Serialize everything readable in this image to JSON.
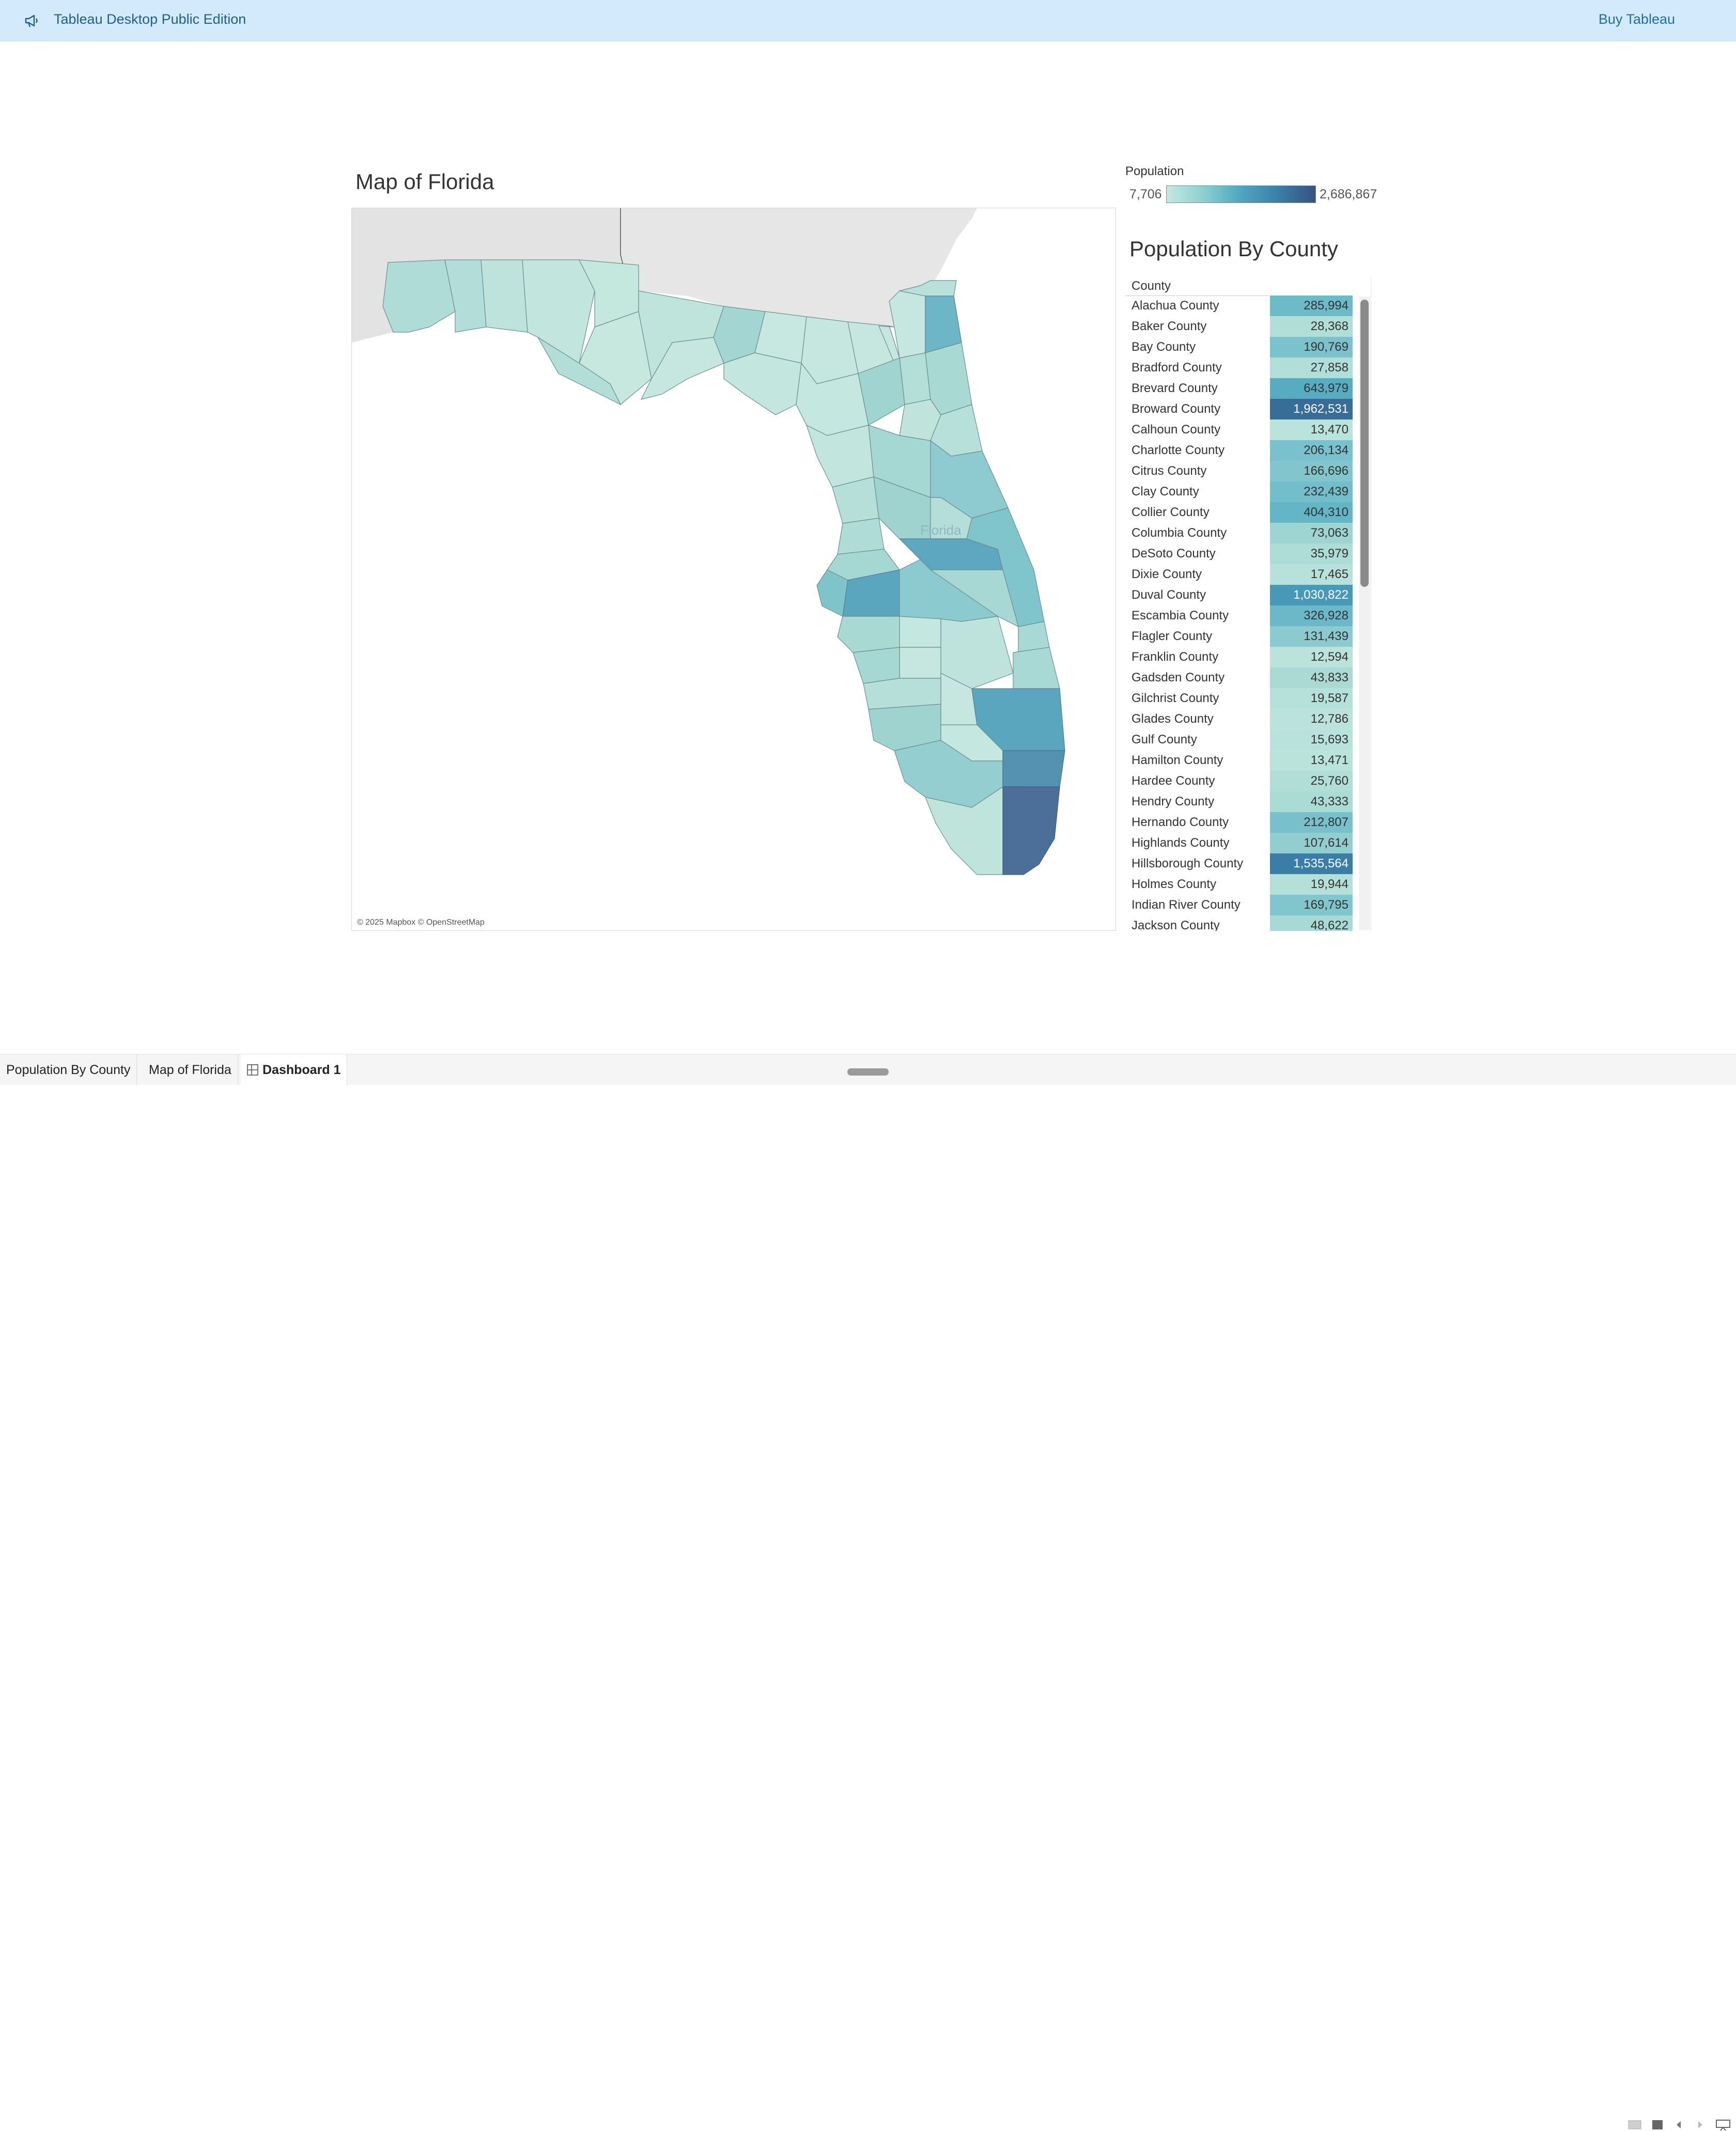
{
  "banner": {
    "title": "Tableau Desktop Public Edition",
    "buy_link": "Buy Tableau",
    "icon": "megaphone-icon"
  },
  "map": {
    "title": "Map of Florida",
    "state_label": "Florida",
    "attribution": "© 2025 Mapbox © OpenStreetMap"
  },
  "legend": {
    "title": "Population",
    "min": "7,706",
    "max": "2,686,867",
    "colors": [
      "#c4e8e1",
      "#8ccfd2",
      "#4ea6bf",
      "#3a7fa8",
      "#35537f"
    ]
  },
  "table": {
    "title": "Population By County",
    "column_header": "County",
    "rows": [
      {
        "county": "Alachua County",
        "population": "285,994",
        "value": 285994
      },
      {
        "county": "Baker County",
        "population": "28,368",
        "value": 28368
      },
      {
        "county": "Bay County",
        "population": "190,769",
        "value": 190769
      },
      {
        "county": "Bradford County",
        "population": "27,858",
        "value": 27858
      },
      {
        "county": "Brevard County",
        "population": "643,979",
        "value": 643979
      },
      {
        "county": "Broward County",
        "population": "1,962,531",
        "value": 1962531
      },
      {
        "county": "Calhoun County",
        "population": "13,470",
        "value": 13470
      },
      {
        "county": "Charlotte County",
        "population": "206,134",
        "value": 206134
      },
      {
        "county": "Citrus County",
        "population": "166,696",
        "value": 166696
      },
      {
        "county": "Clay County",
        "population": "232,439",
        "value": 232439
      },
      {
        "county": "Collier County",
        "population": "404,310",
        "value": 404310
      },
      {
        "county": "Columbia County",
        "population": "73,063",
        "value": 73063
      },
      {
        "county": "DeSoto County",
        "population": "35,979",
        "value": 35979
      },
      {
        "county": "Dixie County",
        "population": "17,465",
        "value": 17465
      },
      {
        "county": "Duval County",
        "population": "1,030,822",
        "value": 1030822
      },
      {
        "county": "Escambia County",
        "population": "326,928",
        "value": 326928
      },
      {
        "county": "Flagler County",
        "population": "131,439",
        "value": 131439
      },
      {
        "county": "Franklin County",
        "population": "12,594",
        "value": 12594
      },
      {
        "county": "Gadsden County",
        "population": "43,833",
        "value": 43833
      },
      {
        "county": "Gilchrist County",
        "population": "19,587",
        "value": 19587
      },
      {
        "county": "Glades County",
        "population": "12,786",
        "value": 12786
      },
      {
        "county": "Gulf County",
        "population": "15,693",
        "value": 15693
      },
      {
        "county": "Hamilton County",
        "population": "13,471",
        "value": 13471
      },
      {
        "county": "Hardee County",
        "population": "25,760",
        "value": 25760
      },
      {
        "county": "Hendry County",
        "population": "43,333",
        "value": 43333
      },
      {
        "county": "Hernando County",
        "population": "212,807",
        "value": 212807
      },
      {
        "county": "Highlands County",
        "population": "107,614",
        "value": 107614
      },
      {
        "county": "Hillsborough County",
        "population": "1,535,564",
        "value": 1535564
      },
      {
        "county": "Holmes County",
        "population": "19,944",
        "value": 19944
      },
      {
        "county": "Indian River County",
        "population": "169,795",
        "value": 169795
      },
      {
        "county": "Jackson County",
        "population": "48,622",
        "value": 48622
      }
    ]
  },
  "tabs": [
    {
      "label": "Population By County",
      "active": false
    },
    {
      "label": "Map of Florida",
      "active": false
    },
    {
      "label": "Dashboard 1",
      "active": true
    }
  ]
}
